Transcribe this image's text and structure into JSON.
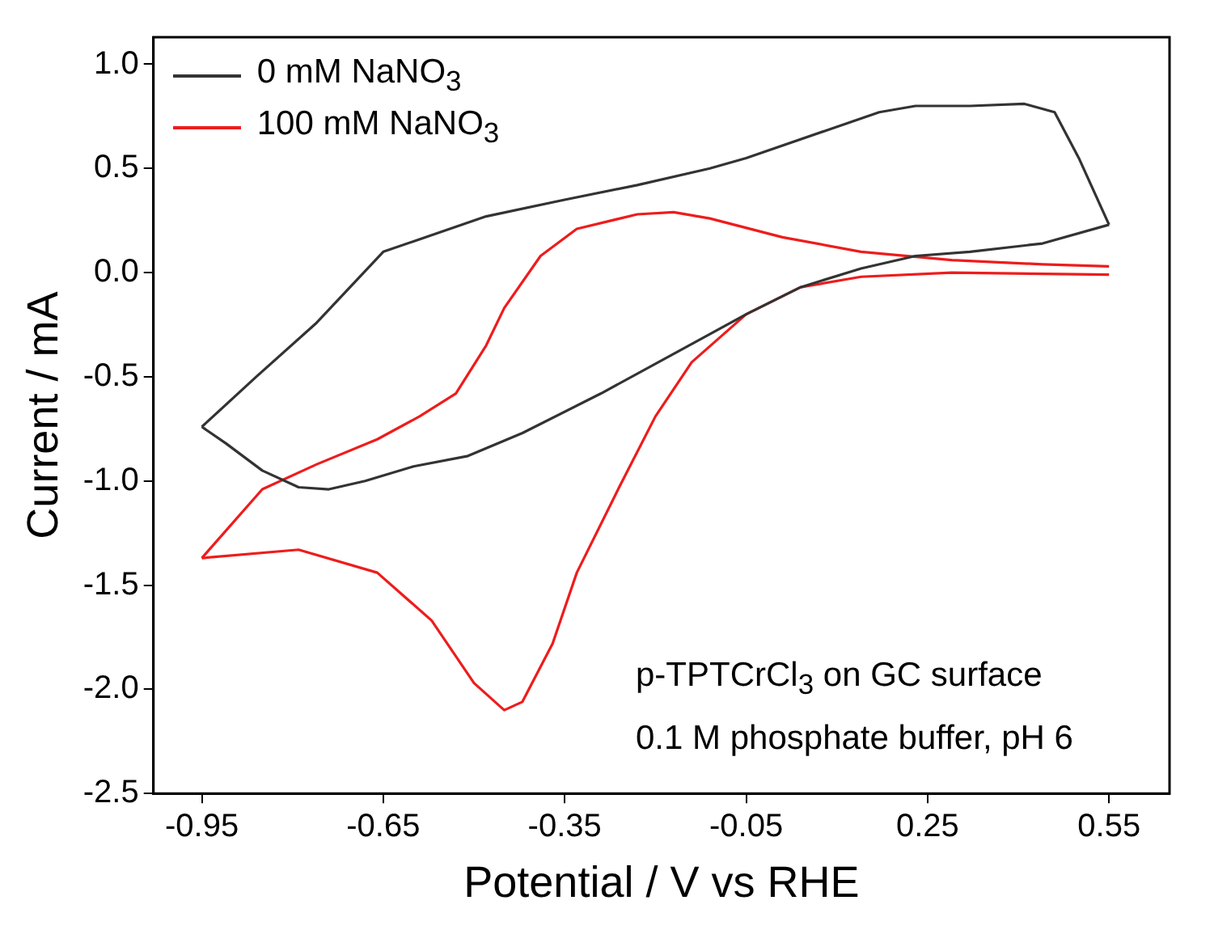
{
  "chart_data": {
    "type": "line",
    "xlabel": "Potential / V vs RHE",
    "ylabel": "Current / mA",
    "xlim": [
      -1.03,
      0.65
    ],
    "xticks": [
      -0.95,
      -0.65,
      -0.35,
      -0.05,
      0.25,
      0.55
    ],
    "ylim": [
      -2.5,
      1.13
    ],
    "yticks": [
      {
        "value": -2.5,
        "label": "-2.5"
      },
      {
        "value": -2,
        "label": "-2.0"
      },
      {
        "value": -1.5,
        "label": "-1.5"
      },
      {
        "value": -1,
        "label": "-1.0"
      },
      {
        "value": -0.5,
        "label": "-0.5"
      },
      {
        "value": 0,
        "label": "0.0"
      },
      {
        "value": 0.5,
        "label": "0.5"
      },
      {
        "value": 1,
        "label": "1.0"
      }
    ],
    "legend": "top left",
    "marker": "none",
    "grid": false,
    "series": [
      {
        "name": "0 mM NaNO$_{3}$",
        "color": "#333333",
        "x": [
          -0.95,
          -0.86,
          -0.76,
          -0.65,
          -0.6,
          -0.48,
          -0.35,
          -0.23,
          -0.11,
          -0.05,
          0.08,
          0.17,
          0.23,
          0.32,
          0.41,
          0.46,
          0.5,
          0.55
        ],
        "values": [
          -0.74,
          -0.5,
          -0.24,
          0.1,
          0.15,
          0.27,
          0.35,
          0.42,
          0.5,
          0.55,
          0.68,
          0.77,
          0.8,
          0.8,
          0.81,
          0.77,
          0.55,
          0.23
        ]
      },
      {
        "color": "#333333",
        "x": [
          -0.95,
          -0.91,
          -0.85,
          -0.79,
          -0.74,
          -0.68,
          -0.6,
          -0.51,
          -0.42,
          -0.29,
          -0.17,
          -0.05,
          0.04,
          0.14,
          0.23,
          0.32,
          0.44,
          0.55
        ],
        "values": [
          -0.74,
          -0.82,
          -0.95,
          -1.03,
          -1.04,
          -1.0,
          -0.93,
          -0.88,
          -0.77,
          -0.58,
          -0.39,
          -0.2,
          -0.07,
          0.02,
          0.08,
          0.1,
          0.14,
          0.23
        ]
      },
      {
        "name": "100 mM NaNO$_{3}$",
        "color": "#ee1c1c",
        "x": [
          -0.95,
          -0.85,
          -0.76,
          -0.66,
          -0.59,
          -0.53,
          -0.48,
          -0.45,
          -0.39,
          -0.33,
          -0.23,
          -0.17,
          -0.11,
          0.01,
          0.14,
          0.29,
          0.44,
          0.55
        ],
        "values": [
          -1.37,
          -1.04,
          -0.92,
          -0.8,
          -0.69,
          -0.58,
          -0.35,
          -0.17,
          0.08,
          0.21,
          0.28,
          0.29,
          0.26,
          0.17,
          0.1,
          0.06,
          0.04,
          0.03
        ]
      },
      {
        "color": "#ee1c1c",
        "x": [
          -0.95,
          -0.79,
          -0.66,
          -0.57,
          -0.5,
          -0.45,
          -0.42,
          -0.37,
          -0.33,
          -0.26,
          -0.2,
          -0.14,
          -0.05,
          0.04,
          0.14,
          0.29,
          0.55
        ],
        "values": [
          -1.37,
          -1.33,
          -1.44,
          -1.67,
          -1.97,
          -2.1,
          -2.06,
          -1.78,
          -1.44,
          -1.03,
          -0.69,
          -0.43,
          -0.2,
          -0.07,
          -0.02,
          0,
          -0.01
        ]
      }
    ],
    "annotations": [
      "p-TPTCrCl$_{3}$ on GC surface",
      "0.1 M phosphate buffer, pH 6"
    ]
  }
}
